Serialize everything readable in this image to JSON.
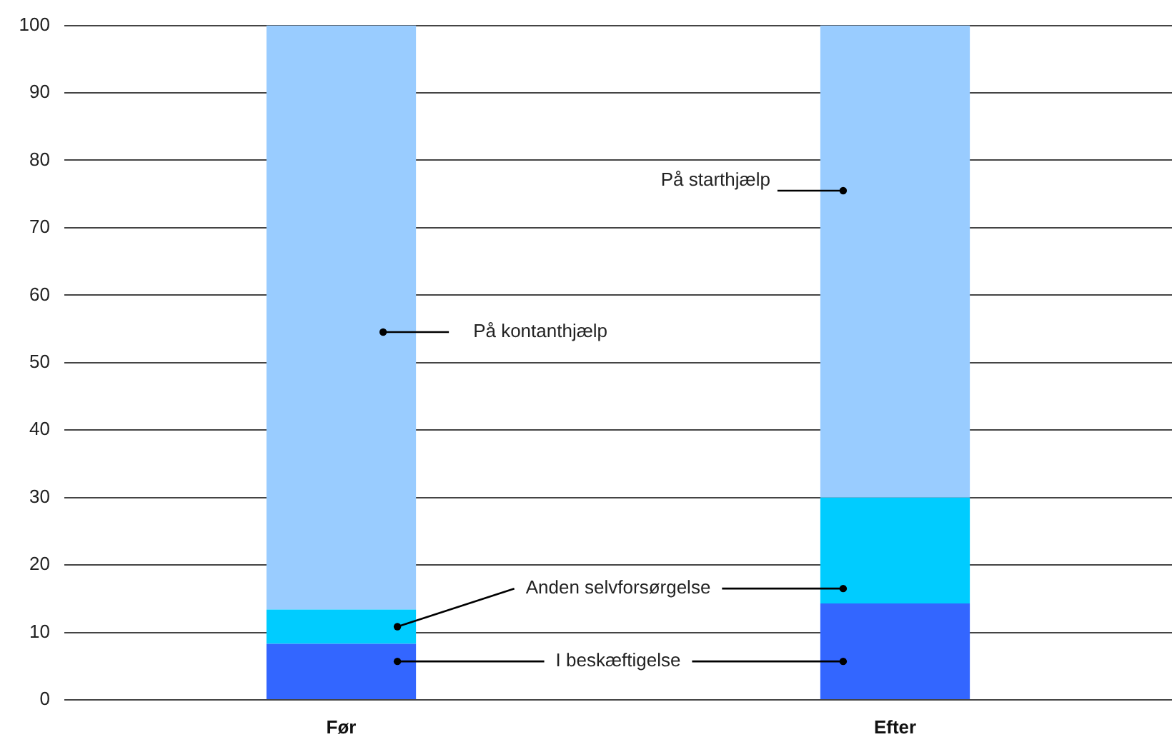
{
  "chart_data": {
    "type": "bar",
    "stacked": true,
    "categories": [
      "Før",
      "Efter"
    ],
    "series": [
      {
        "name": "I beskæftigelse",
        "color": "#3366ff",
        "values": [
          8.3,
          14.3
        ]
      },
      {
        "name": "Anden selvforsørgelse",
        "color": "#00ccff",
        "values": [
          5.1,
          15.7
        ]
      },
      {
        "color": "#99ccff",
        "values": [
          86.6,
          70.0
        ]
      }
    ],
    "ylim": [
      0,
      100
    ],
    "yticks": [
      0,
      10,
      20,
      30,
      40,
      50,
      60,
      70,
      80,
      90,
      100
    ],
    "grid": "y",
    "annotations": [
      "På kontanthjælp",
      "På starthjælp"
    ]
  }
}
